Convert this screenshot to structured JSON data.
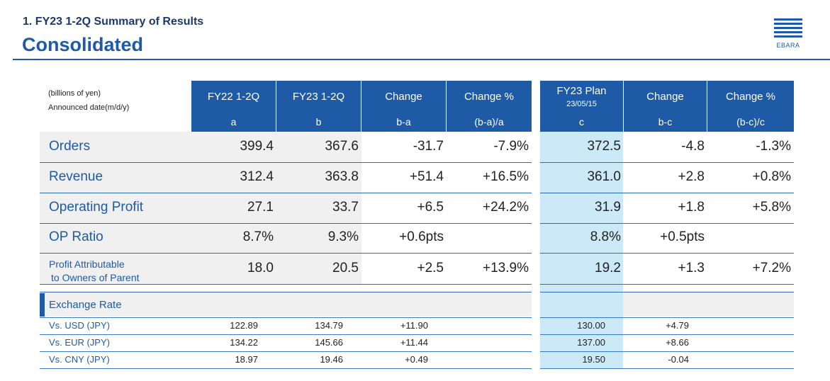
{
  "header": {
    "section_title": "1. FY23 1-2Q Summary of Results",
    "main_title": "Consolidated",
    "logo_text": "EBARA",
    "accent_color": "#1f5aa6"
  },
  "table": {
    "unit_label": "(billions of yen)",
    "date_label": "Announced date(m/d/y)",
    "columns": [
      {
        "label": "FY22 1-2Q",
        "sub": "",
        "code": "a"
      },
      {
        "label": "FY23 1-2Q",
        "sub": "",
        "code": "b"
      },
      {
        "label": "Change",
        "sub": "",
        "code": "b-a"
      },
      {
        "label": "Change %",
        "sub": "",
        "code": "(b-a)/a"
      },
      {
        "label": "FY23 Plan",
        "sub": "23/05/15",
        "code": "c"
      },
      {
        "label": "Change",
        "sub": "",
        "code": "b-c"
      },
      {
        "label": "Change %",
        "sub": "",
        "code": "(b-c)/c"
      }
    ],
    "rows": [
      {
        "label": "Orders",
        "label2": "",
        "values": [
          "399.4",
          "367.6",
          "-31.7",
          "-7.9%",
          "372.5",
          "-4.8",
          "-1.3%"
        ]
      },
      {
        "label": "Revenue",
        "label2": "",
        "values": [
          "312.4",
          "363.8",
          "+51.4",
          "+16.5%",
          "361.0",
          "+2.8",
          "+0.8%"
        ]
      },
      {
        "label": "Operating Profit",
        "label2": "",
        "values": [
          "27.1",
          "33.7",
          "+6.5",
          "+24.2%",
          "31.9",
          "+1.8",
          "+5.8%"
        ]
      },
      {
        "label": "OP Ratio",
        "label2": "",
        "values": [
          "8.7%",
          "9.3%",
          "+0.6pts",
          "",
          "8.8%",
          "+0.5pts",
          ""
        ]
      },
      {
        "label": "Profit Attributable",
        "label2": "to Owners of Parent",
        "values": [
          "18.0",
          "20.5",
          "+2.5",
          "+13.9%",
          "19.2",
          "+1.3",
          "+7.2%"
        ]
      }
    ]
  },
  "exchange": {
    "title": "Exchange Rate",
    "rows": [
      {
        "label": "Vs. USD (JPY)",
        "values": [
          "122.89",
          "134.79",
          "+11.90",
          "",
          "130.00",
          "+4.79",
          ""
        ]
      },
      {
        "label": "Vs. EUR (JPY)",
        "values": [
          "134.22",
          "145.66",
          "+11.44",
          "",
          "137.00",
          "+8.66",
          ""
        ]
      },
      {
        "label": "Vs. CNY (JPY)",
        "values": [
          "18.97",
          "19.46",
          "+0.49",
          "",
          "19.50",
          "-0.04",
          ""
        ]
      }
    ]
  }
}
